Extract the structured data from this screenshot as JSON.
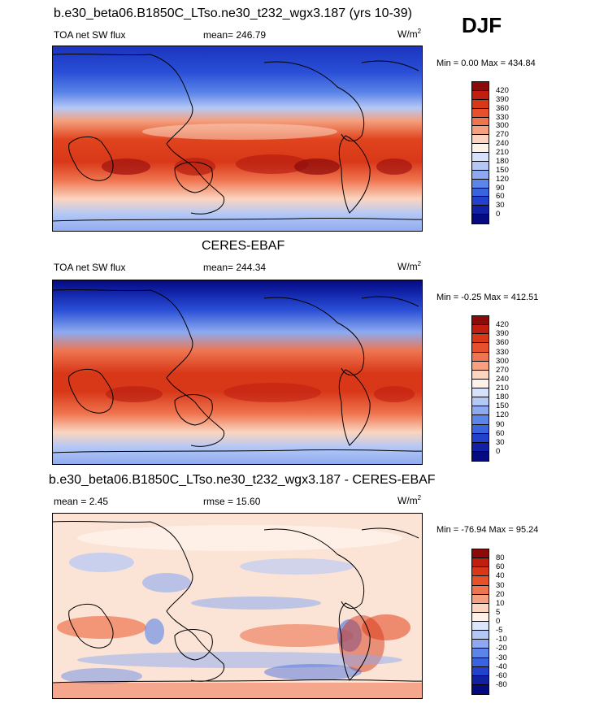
{
  "season": "DJF",
  "panels": [
    {
      "title": "b.e30_beta06.B1850C_LTso.ne30_t232_wgx3.187 (yrs 10-39)",
      "left_label": "TOA net SW flux",
      "center_label": "mean= 246.79",
      "units_base": "W/m",
      "units_exp": "2",
      "minmax": "Min =   0.00 Max = 434.84",
      "colorbar": {
        "labels": [
          "420",
          "390",
          "360",
          "330",
          "300",
          "270",
          "240",
          "210",
          "180",
          "150",
          "120",
          "90",
          "60",
          "30",
          "0"
        ],
        "colors": [
          "#8c0a0a",
          "#c01e10",
          "#d83818",
          "#e6502a",
          "#ef7550",
          "#f5a07e",
          "#fbd5c0",
          "#fff2ea",
          "#d6e2fb",
          "#b4c8f6",
          "#8daaf0",
          "#5b85e8",
          "#3a63de",
          "#2341cc",
          "#1021a6",
          "#050a80"
        ]
      }
    },
    {
      "title": "CERES-EBAF",
      "left_label": "TOA net SW flux",
      "center_label": "mean= 244.34",
      "units_base": "W/m",
      "units_exp": "2",
      "minmax": "Min =  -0.25 Max = 412.51",
      "colorbar": {
        "labels": [
          "420",
          "390",
          "360",
          "330",
          "300",
          "270",
          "240",
          "210",
          "180",
          "150",
          "120",
          "90",
          "60",
          "30",
          "0"
        ],
        "colors": [
          "#8c0a0a",
          "#c01e10",
          "#d83818",
          "#e6502a",
          "#ef7550",
          "#f5a07e",
          "#fbd5c0",
          "#fff2ea",
          "#d6e2fb",
          "#b4c8f6",
          "#8daaf0",
          "#5b85e8",
          "#3a63de",
          "#2341cc",
          "#1021a6",
          "#050a80"
        ]
      }
    },
    {
      "title": "b.e30_beta06.B1850C_LTso.ne30_t232_wgx3.187 - CERES-EBAF",
      "left_label": "mean =   2.45",
      "center_label": "rmse =  15.60",
      "units_base": "W/m",
      "units_exp": "2",
      "minmax": "Min = -76.94 Max =  95.24",
      "colorbar": {
        "labels": [
          "80",
          "60",
          "40",
          "30",
          "20",
          "10",
          "5",
          "0",
          "-5",
          "-10",
          "-20",
          "-30",
          "-40",
          "-60",
          "-80"
        ],
        "colors": [
          "#8c0a0a",
          "#c01e10",
          "#d83818",
          "#e6502a",
          "#ef7550",
          "#f5a07e",
          "#fbd5c0",
          "#fff2ea",
          "#dbe6fb",
          "#b4c8f6",
          "#8daaf0",
          "#5b85e8",
          "#3a63de",
          "#2341cc",
          "#1021a6",
          "#050a80"
        ]
      }
    }
  ]
}
